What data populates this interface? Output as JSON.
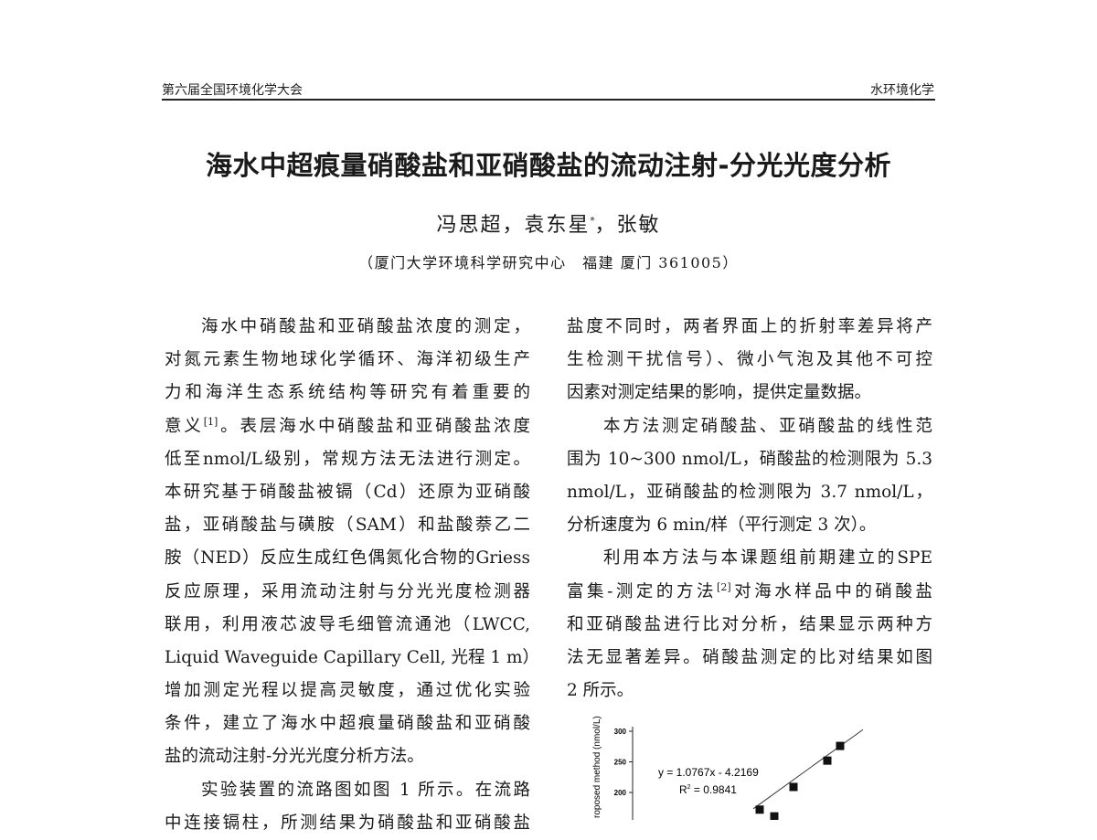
{
  "header": {
    "left": "第六届全国环境化学大会",
    "right": "水环境化学"
  },
  "title": "海水中超痕量硝酸盐和亚硝酸盐的流动注射-分光光度分析",
  "authors": {
    "a1": "冯思超，",
    "a2": "袁东星",
    "a2_mark": "*",
    "a3": "，张敏"
  },
  "affiliation": "（厦门大学环境科学研究中心　福建 厦门 361005）",
  "left_column": {
    "lines": [
      "海水中硝酸盐和亚硝酸盐浓度的测定，",
      "对氮元素生物地球化学循环、海洋初级生产",
      "力和海洋生态系统结构等研究有着重要的",
      "意义",
      "。表层海水中硝酸盐和亚硝酸盐浓度",
      "低至nmol/L级别，常规方法无法进行测定。",
      "本研究基于硝酸盐被镉（Cd）还原为亚硝酸",
      "盐，亚硝酸盐与磺胺（SAM）和盐酸萘乙二",
      "胺（NED）反应生成红色偶氮化合物的Griess",
      "反应原理，采用流动注射与分光光度检测器",
      "联用，利用液芯波导毛细管流通池（LWCC,",
      "Liquid Waveguide Capillary Cell, 光程 1 m）",
      "增加测定光程以提高灵敏度，通过优化实验",
      "条件，建立了海水中超痕量硝酸盐和亚硝酸",
      "盐的流动注射-分光光度分析方法。",
      "实验装置的流路图如图 1 所示。在流路",
      "中连接镉柱，所测结果为硝酸盐和亚硝酸盐"
    ],
    "ref1": "[1]"
  },
  "right_column": {
    "lines": [
      "盐度不同时，两者界面上的折射率差异将产",
      "生检测干扰信号）、微小气泡及其他不可控",
      "因素对测定结果的影响，提供定量数据。",
      "本方法测定硝酸盐、亚硝酸盐的线性范",
      "围为 10~300 nmol/L，硝酸盐的检测限为 5.3",
      "nmol/L，亚硝酸盐的检测限为 3.7 nmol/L，",
      "分析速度为 6 min/样（平行测定 3 次）。",
      "利用本方法与本课题组前期建立的SPE",
      "富集-测定的方法",
      "对海水样品中的硝酸盐",
      "和亚硝酸盐进行比对分析，结果显示两种方",
      "法无显著差异。硝酸盐测定的比对结果如图",
      "2 所示。"
    ],
    "ref2": "[2]"
  },
  "chart_data": {
    "type": "scatter",
    "ylabel": "roposed method (nmol/L)",
    "yticks": [
      "300",
      "250",
      "200"
    ],
    "ylim": [
      150,
      300
    ],
    "xlim": [
      150,
      290
    ],
    "points": [
      {
        "x": 172,
        "y": 172
      },
      {
        "x": 188,
        "y": 161
      },
      {
        "x": 209,
        "y": 209
      },
      {
        "x": 246,
        "y": 252
      },
      {
        "x": 260,
        "y": 276
      }
    ],
    "fit": {
      "slope": 1.0767,
      "intercept": -4.2169
    },
    "equation": "y = 1.0767x - 4.2169",
    "r2_label": "R",
    "r2_value": " = 0.9841",
    "marker_color": "#111111"
  }
}
